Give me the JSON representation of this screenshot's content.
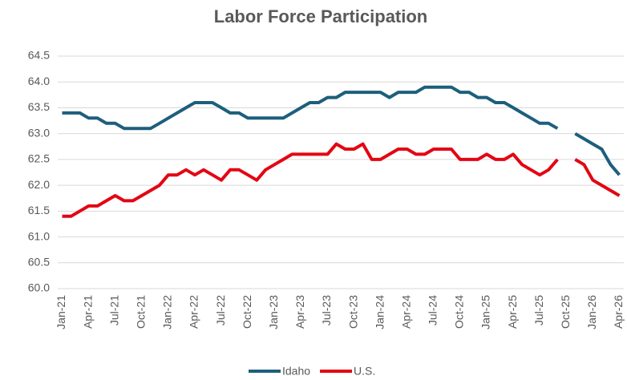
{
  "chart_data": {
    "type": "line",
    "title": "Labor Force Participation",
    "categories": [
      "Jan-21",
      null,
      null,
      "Apr-21",
      null,
      null,
      "Jul-21",
      null,
      null,
      "Oct-21",
      null,
      null,
      "Jan-22",
      null,
      null,
      "Apr-22",
      null,
      null,
      "Jul-22",
      null,
      null,
      "Oct-22",
      null,
      null,
      "Jan-23",
      null,
      null,
      "Apr-23",
      null,
      null,
      "Jul-23",
      null,
      null,
      "Oct-23",
      null,
      null,
      "Jan-24",
      null,
      null,
      "Apr-24",
      null,
      null,
      "Jul-24",
      null,
      null,
      "Oct-24",
      null,
      null,
      "Jan-25",
      null,
      null,
      "Apr-25",
      null,
      null,
      "Jul-25",
      null,
      null,
      "Oct-25",
      null,
      null,
      "Jan-26",
      null,
      null,
      "Apr-26"
    ],
    "series": [
      {
        "name": "Idaho",
        "color": "#1d5f7c",
        "values": [
          63.4,
          63.4,
          63.4,
          63.3,
          63.3,
          63.2,
          63.2,
          63.1,
          63.1,
          63.1,
          63.1,
          63.2,
          63.3,
          63.4,
          63.5,
          63.6,
          63.6,
          63.6,
          63.5,
          63.4,
          63.4,
          63.3,
          63.3,
          63.3,
          63.3,
          63.3,
          63.4,
          63.5,
          63.6,
          63.6,
          63.7,
          63.7,
          63.8,
          63.8,
          63.8,
          63.8,
          63.8,
          63.7,
          63.8,
          63.8,
          63.8,
          63.9,
          63.9,
          63.9,
          63.9,
          63.8,
          63.8,
          63.7,
          63.7,
          63.6,
          63.6,
          63.5,
          63.4,
          63.3,
          63.2,
          63.2,
          63.1,
          null,
          63.0,
          62.9,
          62.8,
          62.7,
          62.4,
          62.2
        ]
      },
      {
        "name": "U.S.",
        "color": "#e30613",
        "values": [
          61.4,
          61.4,
          61.5,
          61.6,
          61.6,
          61.7,
          61.8,
          61.7,
          61.7,
          61.8,
          61.9,
          62.0,
          62.2,
          62.2,
          62.3,
          62.2,
          62.3,
          62.2,
          62.1,
          62.3,
          62.3,
          62.2,
          62.1,
          62.3,
          62.4,
          62.5,
          62.6,
          62.6,
          62.6,
          62.6,
          62.6,
          62.8,
          62.7,
          62.7,
          62.8,
          62.5,
          62.5,
          62.6,
          62.7,
          62.7,
          62.6,
          62.6,
          62.7,
          62.7,
          62.7,
          62.5,
          62.5,
          62.5,
          62.6,
          62.5,
          62.5,
          62.6,
          62.4,
          62.3,
          62.2,
          62.3,
          62.5,
          null,
          62.5,
          62.4,
          62.1,
          62.0,
          61.9,
          61.8
        ]
      }
    ],
    "ylim": [
      60,
      64.5
    ],
    "yticks": [
      {
        "value": 60,
        "label": "60.0"
      },
      {
        "value": 60.5,
        "label": "60.5"
      },
      {
        "value": 61,
        "label": "61.0"
      },
      {
        "value": 61.5,
        "label": "61.5"
      },
      {
        "value": 62,
        "label": "62.0"
      },
      {
        "value": 62.5,
        "label": "62.5"
      },
      {
        "value": 63,
        "label": "63.0"
      },
      {
        "value": 63.5,
        "label": "63.5"
      },
      {
        "value": 64,
        "label": "64.0"
      },
      {
        "value": 64.5,
        "label": "64.5"
      }
    ],
    "grid": true,
    "legend": "bottom"
  }
}
